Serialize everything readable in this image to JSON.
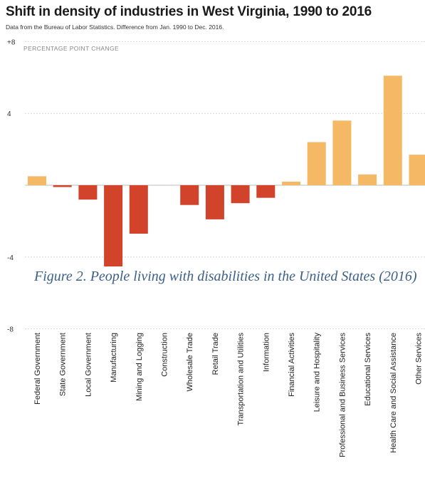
{
  "chart_data": {
    "type": "bar",
    "title": "Shift in density of industries in West Virginia, 1990 to 2016",
    "subtitle": "Data from the Bureau of Labor Statistics. Difference from Jan. 1990 to Dec. 2016.",
    "ylabel": "PERCENTAGE POINT CHANGE",
    "ylim": [
      -8,
      8
    ],
    "yticks": [
      8,
      4,
      -4,
      -8
    ],
    "ytick_labels": [
      "+8",
      "4",
      "-4",
      "-8"
    ],
    "grid": true,
    "categories": [
      "Federal Government",
      "State Government",
      "Local Government",
      "Manufacturing",
      "Mining and Logging",
      "Construction",
      "Wholesale Trade",
      "Retail Trade",
      "Transportation and Utilities",
      "Information",
      "Financial Activities",
      "Leisure and Hospitality",
      "Professional and Business Services",
      "Educational Services",
      "Health Care and Social Assistance",
      "Other Services"
    ],
    "values": [
      0.5,
      -0.1,
      -0.8,
      -4.6,
      -2.7,
      0.0,
      -1.1,
      -1.9,
      -1.0,
      -0.7,
      0.2,
      2.4,
      3.6,
      0.6,
      6.1,
      1.7
    ],
    "colors": {
      "positive": "#f5b966",
      "negative": "#d2432b"
    }
  },
  "caption": "Figure 2. People living with disabilities in the United States (2016)"
}
